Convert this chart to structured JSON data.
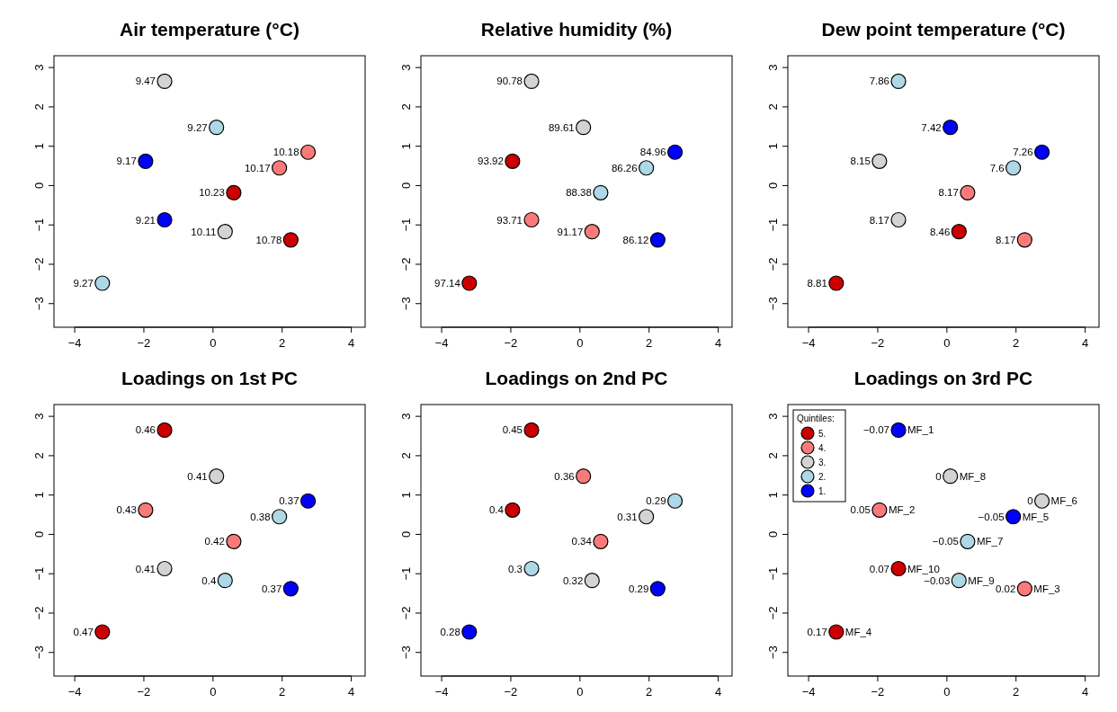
{
  "chart_data": [
    {
      "type": "scatter",
      "title": "Air temperature (°C)",
      "xlim": [
        -4.6,
        4.4
      ],
      "ylim": [
        -3.6,
        3.3
      ],
      "xticks": [
        -4,
        -2,
        0,
        2,
        4
      ],
      "yticks": [
        -3,
        -2,
        -1,
        0,
        1,
        2,
        3
      ],
      "grid": false,
      "marker": "circle",
      "legend": false,
      "series": [
        {
          "color": "#cc0000",
          "x": [
            0.6,
            2.25
          ],
          "values": [
            -0.18,
            -1.38
          ]
        },
        {
          "color": "#fa7a7a",
          "x": [
            2.75,
            1.92
          ],
          "values": [
            0.85,
            0.45
          ]
        },
        {
          "color": "#d3d3d3",
          "x": [
            -1.4,
            0.35
          ],
          "values": [
            2.65,
            -1.17
          ]
        },
        {
          "color": "#add8e6",
          "x": [
            0.1,
            -3.2
          ],
          "values": [
            1.48,
            -2.48
          ]
        },
        {
          "color": "#0000ff",
          "x": [
            -1.95,
            -1.4
          ],
          "values": [
            0.62,
            -0.87
          ]
        }
      ],
      "annotations": [
        {
          "text": "10.23",
          "x": 0.6,
          "y": -0.18
        },
        {
          "text": "10.78",
          "x": 2.25,
          "y": -1.38
        },
        {
          "text": "10.18",
          "x": 2.75,
          "y": 0.85
        },
        {
          "text": "10.17",
          "x": 1.92,
          "y": 0.45
        },
        {
          "text": "9.47",
          "x": -1.4,
          "y": 2.65
        },
        {
          "text": "10.11",
          "x": 0.35,
          "y": -1.17
        },
        {
          "text": "9.27",
          "x": 0.1,
          "y": 1.48
        },
        {
          "text": "9.27",
          "x": -3.2,
          "y": -2.48
        },
        {
          "text": "9.17",
          "x": -1.95,
          "y": 0.62
        },
        {
          "text": "9.21",
          "x": -1.4,
          "y": -0.87
        }
      ]
    },
    {
      "type": "scatter",
      "title": "Relative humidity (%)",
      "xlim": [
        -4.6,
        4.4
      ],
      "ylim": [
        -3.6,
        3.3
      ],
      "xticks": [
        -4,
        -2,
        0,
        2,
        4
      ],
      "yticks": [
        -3,
        -2,
        -1,
        0,
        1,
        2,
        3
      ],
      "grid": false,
      "marker": "circle",
      "legend": false,
      "series": [
        {
          "color": "#cc0000",
          "x": [
            -1.95,
            -3.2
          ],
          "values": [
            0.62,
            -2.48
          ]
        },
        {
          "color": "#fa7a7a",
          "x": [
            -1.4,
            0.35
          ],
          "values": [
            -0.87,
            -1.17
          ]
        },
        {
          "color": "#d3d3d3",
          "x": [
            -1.4,
            0.1
          ],
          "values": [
            2.65,
            1.48
          ]
        },
        {
          "color": "#add8e6",
          "x": [
            1.92,
            0.6
          ],
          "values": [
            0.45,
            -0.18
          ]
        },
        {
          "color": "#0000ff",
          "x": [
            2.75,
            2.25
          ],
          "values": [
            0.85,
            -1.38
          ]
        }
      ],
      "annotations": [
        {
          "text": "93.92",
          "x": -1.95,
          "y": 0.62
        },
        {
          "text": "97.14",
          "x": -3.2,
          "y": -2.48
        },
        {
          "text": "93.71",
          "x": -1.4,
          "y": -0.87
        },
        {
          "text": "91.17",
          "x": 0.35,
          "y": -1.17
        },
        {
          "text": "90.78",
          "x": -1.4,
          "y": 2.65
        },
        {
          "text": "89.61",
          "x": 0.1,
          "y": 1.48
        },
        {
          "text": "86.26",
          "x": 1.92,
          "y": 0.45
        },
        {
          "text": "88.38",
          "x": 0.6,
          "y": -0.18
        },
        {
          "text": "84.96",
          "x": 2.75,
          "y": 0.85
        },
        {
          "text": "86.12",
          "x": 2.25,
          "y": -1.38
        }
      ]
    },
    {
      "type": "scatter",
      "title": "Dew point temperature (°C)",
      "xlim": [
        -4.6,
        4.4
      ],
      "ylim": [
        -3.6,
        3.3
      ],
      "xticks": [
        -4,
        -2,
        0,
        2,
        4
      ],
      "yticks": [
        -3,
        -2,
        -1,
        0,
        1,
        2,
        3
      ],
      "grid": false,
      "marker": "circle",
      "legend": false,
      "series": [
        {
          "color": "#cc0000",
          "x": [
            0.35,
            -3.2
          ],
          "values": [
            -1.17,
            -2.48
          ]
        },
        {
          "color": "#fa7a7a",
          "x": [
            0.6,
            2.25
          ],
          "values": [
            -0.18,
            -1.38
          ]
        },
        {
          "color": "#d3d3d3",
          "x": [
            -1.95,
            -1.4
          ],
          "values": [
            0.62,
            -0.87
          ]
        },
        {
          "color": "#add8e6",
          "x": [
            -1.4,
            1.92
          ],
          "values": [
            2.65,
            0.45
          ]
        },
        {
          "color": "#0000ff",
          "x": [
            0.1,
            2.75
          ],
          "values": [
            1.48,
            0.85
          ]
        }
      ],
      "annotations": [
        {
          "text": "8.46",
          "x": 0.35,
          "y": -1.17
        },
        {
          "text": "8.81",
          "x": -3.2,
          "y": -2.48
        },
        {
          "text": "8.17",
          "x": 0.6,
          "y": -0.18
        },
        {
          "text": "8.17",
          "x": 2.25,
          "y": -1.38
        },
        {
          "text": "8.15",
          "x": -1.95,
          "y": 0.62
        },
        {
          "text": "8.17",
          "x": -1.4,
          "y": -0.87
        },
        {
          "text": "7.86",
          "x": -1.4,
          "y": 2.65
        },
        {
          "text": "7.6",
          "x": 1.92,
          "y": 0.45
        },
        {
          "text": "7.42",
          "x": 0.1,
          "y": 1.48
        },
        {
          "text": "7.26",
          "x": 2.75,
          "y": 0.85
        }
      ]
    },
    {
      "type": "scatter",
      "title": "Loadings on 1st PC",
      "xlim": [
        -4.6,
        4.4
      ],
      "ylim": [
        -3.6,
        3.3
      ],
      "xticks": [
        -4,
        -2,
        0,
        2,
        4
      ],
      "yticks": [
        -3,
        -2,
        -1,
        0,
        1,
        2,
        3
      ],
      "grid": false,
      "marker": "circle",
      "legend": false,
      "series": [
        {
          "color": "#cc0000",
          "x": [
            -1.4,
            -3.2
          ],
          "values": [
            2.65,
            -2.48
          ]
        },
        {
          "color": "#fa7a7a",
          "x": [
            -1.95,
            0.6
          ],
          "values": [
            0.62,
            -0.18
          ]
        },
        {
          "color": "#d3d3d3",
          "x": [
            0.1,
            -1.4
          ],
          "values": [
            1.48,
            -0.87
          ]
        },
        {
          "color": "#add8e6",
          "x": [
            1.92,
            0.35
          ],
          "values": [
            0.45,
            -1.17
          ]
        },
        {
          "color": "#0000ff",
          "x": [
            2.75,
            2.25
          ],
          "values": [
            0.85,
            -1.38
          ]
        }
      ],
      "annotations": [
        {
          "text": "0.46",
          "x": -1.4,
          "y": 2.65
        },
        {
          "text": "0.47",
          "x": -3.2,
          "y": -2.48
        },
        {
          "text": "0.43",
          "x": -1.95,
          "y": 0.62
        },
        {
          "text": "0.42",
          "x": 0.6,
          "y": -0.18
        },
        {
          "text": "0.41",
          "x": 0.1,
          "y": 1.48
        },
        {
          "text": "0.41",
          "x": -1.4,
          "y": -0.87
        },
        {
          "text": "0.38",
          "x": 1.92,
          "y": 0.45
        },
        {
          "text": "0.4",
          "x": 0.35,
          "y": -1.17
        },
        {
          "text": "0.37",
          "x": 2.75,
          "y": 0.85
        },
        {
          "text": "0.37",
          "x": 2.25,
          "y": -1.38
        }
      ]
    },
    {
      "type": "scatter",
      "title": "Loadings on 2nd PC",
      "xlim": [
        -4.6,
        4.4
      ],
      "ylim": [
        -3.6,
        3.3
      ],
      "xticks": [
        -4,
        -2,
        0,
        2,
        4
      ],
      "yticks": [
        -3,
        -2,
        -1,
        0,
        1,
        2,
        3
      ],
      "grid": false,
      "marker": "circle",
      "legend": false,
      "series": [
        {
          "color": "#cc0000",
          "x": [
            -1.4,
            -1.95
          ],
          "values": [
            2.65,
            0.62
          ]
        },
        {
          "color": "#fa7a7a",
          "x": [
            0.1,
            0.6
          ],
          "values": [
            1.48,
            -0.18
          ]
        },
        {
          "color": "#d3d3d3",
          "x": [
            1.92,
            0.35
          ],
          "values": [
            0.45,
            -1.17
          ]
        },
        {
          "color": "#add8e6",
          "x": [
            2.75,
            -1.4
          ],
          "values": [
            0.85,
            -0.87
          ]
        },
        {
          "color": "#0000ff",
          "x": [
            2.25,
            -3.2
          ],
          "values": [
            -1.38,
            -2.48
          ]
        }
      ],
      "annotations": [
        {
          "text": "0.45",
          "x": -1.4,
          "y": 2.65
        },
        {
          "text": "0.4",
          "x": -1.95,
          "y": 0.62
        },
        {
          "text": "0.36",
          "x": 0.1,
          "y": 1.48
        },
        {
          "text": "0.34",
          "x": 0.6,
          "y": -0.18
        },
        {
          "text": "0.31",
          "x": 1.92,
          "y": 0.45
        },
        {
          "text": "0.32",
          "x": 0.35,
          "y": -1.17
        },
        {
          "text": "0.29",
          "x": 2.75,
          "y": 0.85
        },
        {
          "text": "0.3",
          "x": -1.4,
          "y": -0.87
        },
        {
          "text": "0.29",
          "x": 2.25,
          "y": -1.38
        },
        {
          "text": "0.28",
          "x": -3.2,
          "y": -2.48
        }
      ]
    },
    {
      "type": "scatter",
      "title": "Loadings on 3rd PC",
      "xlim": [
        -4.6,
        4.4
      ],
      "ylim": [
        -3.6,
        3.3
      ],
      "xticks": [
        -4,
        -2,
        0,
        2,
        4
      ],
      "yticks": [
        -3,
        -2,
        -1,
        0,
        1,
        2,
        3
      ],
      "grid": false,
      "marker": "circle",
      "legend": "top left",
      "legend_title": "Quintiles:",
      "series": [
        {
          "name": "5.",
          "color": "#cc0000",
          "x": [
            -1.4,
            -3.2
          ],
          "values": [
            -0.87,
            -2.48
          ]
        },
        {
          "name": "4.",
          "color": "#fa7a7a",
          "x": [
            -1.95,
            2.25
          ],
          "values": [
            0.62,
            -1.38
          ]
        },
        {
          "name": "3.",
          "color": "#d3d3d3",
          "x": [
            0.1,
            2.75
          ],
          "values": [
            1.48,
            0.85
          ]
        },
        {
          "name": "2.",
          "color": "#add8e6",
          "x": [
            0.6,
            0.35
          ],
          "values": [
            -0.18,
            -1.17
          ]
        },
        {
          "name": "1.",
          "color": "#0000ff",
          "x": [
            -1.4,
            1.92
          ],
          "values": [
            2.65,
            0.45
          ]
        }
      ],
      "annotations": [
        {
          "text": "−0.07",
          "x": -1.4,
          "y": 2.65
        },
        {
          "text": "MF_1",
          "x": -1.4,
          "y": 2.65
        },
        {
          "text": "0",
          "x": 0.1,
          "y": 1.48
        },
        {
          "text": "MF_8",
          "x": 0.1,
          "y": 1.48
        },
        {
          "text": "0",
          "x": 2.75,
          "y": 0.85
        },
        {
          "text": "MF_6",
          "x": 2.75,
          "y": 0.85
        },
        {
          "text": "0.05",
          "x": -1.95,
          "y": 0.62
        },
        {
          "text": "MF_2",
          "x": -1.95,
          "y": 0.62
        },
        {
          "text": "−0.05",
          "x": 1.92,
          "y": 0.45
        },
        {
          "text": "MF_5",
          "x": 1.92,
          "y": 0.45
        },
        {
          "text": "−0.05",
          "x": 0.6,
          "y": -0.18
        },
        {
          "text": "MF_7",
          "x": 0.6,
          "y": -0.18
        },
        {
          "text": "0.07",
          "x": -1.4,
          "y": -0.87
        },
        {
          "text": "MF_10",
          "x": -1.4,
          "y": -0.87
        },
        {
          "text": "−0.03",
          "x": 0.35,
          "y": -1.17
        },
        {
          "text": "MF_9",
          "x": 0.35,
          "y": -1.17
        },
        {
          "text": "0.02",
          "x": 2.25,
          "y": -1.38
        },
        {
          "text": "MF_3",
          "x": 2.25,
          "y": -1.38
        },
        {
          "text": "0.17",
          "x": -3.2,
          "y": -2.48
        },
        {
          "text": "MF_4",
          "x": -3.2,
          "y": -2.48
        }
      ]
    }
  ]
}
